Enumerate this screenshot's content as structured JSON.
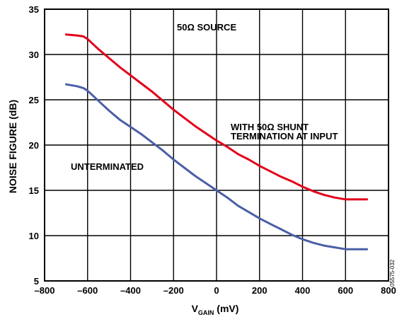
{
  "chart_data": {
    "type": "line",
    "xlabel_main": "V",
    "xlabel_sub": "GAIN",
    "xlabel_unit": " (mV)",
    "ylabel": "NOISE FIGURE (dB)",
    "xlim": [
      -800,
      800
    ],
    "ylim": [
      5,
      35
    ],
    "xticks": [
      -800,
      -600,
      -400,
      -200,
      0,
      200,
      400,
      600,
      800
    ],
    "xtick_labels": [
      "–800",
      "–600",
      "–400",
      "–200",
      "0",
      "200",
      "400",
      "600",
      "800"
    ],
    "yticks": [
      5,
      10,
      15,
      20,
      25,
      30,
      35
    ],
    "ytick_labels": [
      "5",
      "10",
      "15",
      "20",
      "25",
      "30",
      "35"
    ],
    "grid": true,
    "series": [
      {
        "color": "#e3001b",
        "x": [
          -700,
          -650,
          -620,
          -600,
          -550,
          -500,
          -450,
          -400,
          -350,
          -300,
          -250,
          -200,
          -150,
          -100,
          -50,
          0,
          50,
          100,
          150,
          200,
          250,
          300,
          350,
          400,
          450,
          500,
          550,
          600,
          650,
          700
        ],
        "y": [
          32.2,
          32.1,
          32.0,
          31.7,
          30.6,
          29.6,
          28.6,
          27.7,
          26.8,
          25.9,
          24.9,
          23.9,
          23.0,
          22.1,
          21.3,
          20.5,
          19.8,
          19.0,
          18.4,
          17.7,
          17.1,
          16.5,
          16.0,
          15.4,
          14.9,
          14.5,
          14.2,
          14.0,
          14.0,
          14.0
        ]
      },
      {
        "color": "#4b5fa6",
        "x": [
          -700,
          -650,
          -620,
          -600,
          -550,
          -500,
          -450,
          -400,
          -350,
          -300,
          -250,
          -200,
          -150,
          -100,
          -50,
          0,
          50,
          100,
          150,
          200,
          250,
          300,
          350,
          400,
          450,
          500,
          550,
          600,
          650,
          700
        ],
        "y": [
          26.7,
          26.5,
          26.3,
          26.0,
          24.9,
          23.8,
          22.8,
          22.0,
          21.2,
          20.3,
          19.4,
          18.4,
          17.5,
          16.6,
          15.8,
          15.0,
          14.2,
          13.3,
          12.6,
          11.9,
          11.3,
          10.7,
          10.1,
          9.6,
          9.2,
          8.9,
          8.7,
          8.5,
          8.5,
          8.5
        ]
      }
    ],
    "annotations": {
      "source": "50Ω  SOURCE",
      "shunt_line1": "WITH 50Ω  SHUNT",
      "shunt_line2": "TERMINATION AT INPUT",
      "unterminated": "UNTERMINATED"
    },
    "figure_id": "05575-032"
  }
}
